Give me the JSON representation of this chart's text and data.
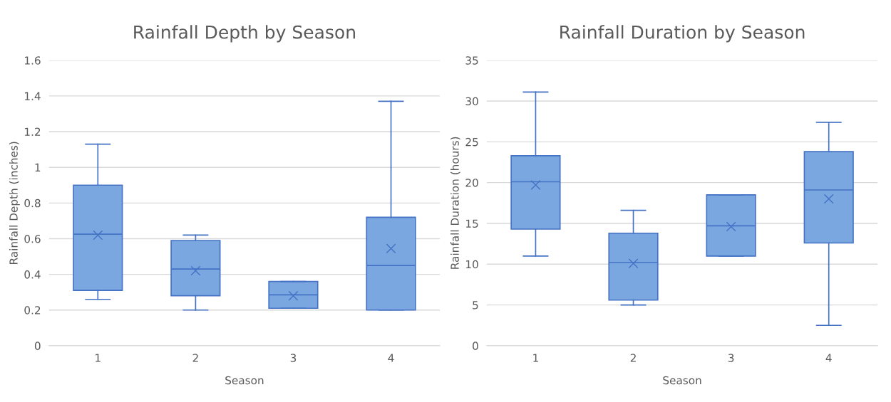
{
  "chart_data": [
    {
      "type": "box",
      "title": "Rainfall Depth by Season",
      "xlabel": "Season",
      "ylabel": "Rainfall Depth (inches)",
      "categories": [
        "1",
        "2",
        "3",
        "4"
      ],
      "ylim": [
        0,
        1.6
      ],
      "yticks": [
        0,
        0.2,
        0.4,
        0.6,
        0.8,
        1,
        1.2,
        1.4,
        1.6
      ],
      "grid": "y",
      "color": "#7ba7e0",
      "boxes": [
        {
          "low": 0.26,
          "q1": 0.31,
          "median": 0.625,
          "q3": 0.9,
          "high": 1.13,
          "mean": 0.62
        },
        {
          "low": 0.2,
          "q1": 0.28,
          "median": 0.43,
          "q3": 0.59,
          "high": 0.62,
          "mean": 0.42
        },
        {
          "low": 0.21,
          "q1": 0.21,
          "median": 0.285,
          "q3": 0.36,
          "high": 0.36,
          "mean": 0.28
        },
        {
          "low": 0.2,
          "q1": 0.2,
          "median": 0.45,
          "q3": 0.72,
          "high": 1.37,
          "mean": 0.545
        }
      ]
    },
    {
      "type": "box",
      "title": "Rainfall Duration by Season",
      "xlabel": "Season",
      "ylabel": "Rainfall Duration (hours)",
      "categories": [
        "1",
        "2",
        "3",
        "4"
      ],
      "ylim": [
        0,
        35
      ],
      "yticks": [
        0,
        5,
        10,
        15,
        20,
        25,
        30,
        35
      ],
      "grid": "y",
      "color": "#7ba7e0",
      "boxes": [
        {
          "low": 11.0,
          "q1": 14.3,
          "median": 20.1,
          "q3": 23.3,
          "high": 31.1,
          "mean": 19.7
        },
        {
          "low": 5.0,
          "q1": 5.6,
          "median": 10.2,
          "q3": 13.8,
          "high": 16.6,
          "mean": 10.1
        },
        {
          "low": 11.0,
          "q1": 11.0,
          "median": 14.7,
          "q3": 18.5,
          "high": 18.5,
          "mean": 14.6
        },
        {
          "low": 2.5,
          "q1": 12.6,
          "median": 19.1,
          "q3": 23.8,
          "high": 27.4,
          "mean": 18.0
        }
      ]
    }
  ]
}
